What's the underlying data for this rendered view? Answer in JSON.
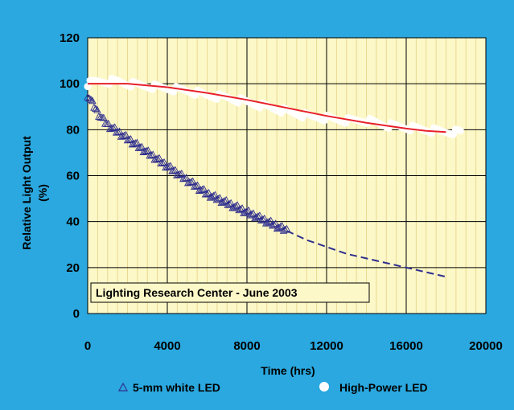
{
  "chart_data": {
    "type": "scatter",
    "title": "",
    "xlabel": "Time (hrs)",
    "ylabel_line1": "Relative Light Output",
    "ylabel_line2": "(%)",
    "xlim": [
      0,
      20000
    ],
    "ylim": [
      0,
      120
    ],
    "x_ticks": [
      0,
      4000,
      8000,
      12000,
      16000,
      20000
    ],
    "y_ticks": [
      0,
      20,
      40,
      60,
      80,
      100,
      120
    ],
    "x_tick_labels": [
      "0",
      "4000",
      "8000",
      "12000",
      "16000",
      "20000"
    ],
    "y_tick_labels": [
      "0",
      "20",
      "40",
      "60",
      "80",
      "100",
      "120"
    ],
    "grid": true,
    "legend_position": "bottom",
    "annotation": "Lighting Research Center - June 2003",
    "colors": {
      "background": "#2aa8df",
      "plot_area": "#fdf8c8",
      "grid": "#000000",
      "led_5mm": "#2e2e8e",
      "high_power_markers": "#ffffff",
      "high_power_fit": "#e8202a"
    },
    "series": [
      {
        "name": "5-mm white LED",
        "marker": "triangle",
        "points": [
          [
            0,
            95
          ],
          [
            200,
            92
          ],
          [
            400,
            89
          ],
          [
            600,
            86
          ],
          [
            800,
            84
          ],
          [
            1000,
            82
          ],
          [
            1500,
            79
          ],
          [
            2000,
            76
          ],
          [
            2500,
            73
          ],
          [
            3000,
            70
          ],
          [
            3500,
            67
          ],
          [
            4000,
            64
          ],
          [
            4500,
            61
          ],
          [
            5000,
            58
          ],
          [
            5500,
            55
          ],
          [
            6000,
            52
          ],
          [
            6500,
            50
          ],
          [
            7000,
            48
          ],
          [
            7500,
            46
          ],
          [
            8000,
            44
          ],
          [
            8500,
            42
          ],
          [
            9000,
            40
          ],
          [
            9500,
            38
          ],
          [
            10000,
            36
          ]
        ],
        "extrapolation": [
          [
            10000,
            36
          ],
          [
            11000,
            32
          ],
          [
            12000,
            29
          ],
          [
            13000,
            26
          ],
          [
            14000,
            24
          ],
          [
            15000,
            22
          ],
          [
            16000,
            20
          ],
          [
            17000,
            18
          ],
          [
            18000,
            16
          ]
        ]
      },
      {
        "name": "High-Power LED",
        "marker": "circle",
        "points": [
          [
            0,
            100
          ],
          [
            500,
            101
          ],
          [
            1000,
            101
          ],
          [
            1500,
            101
          ],
          [
            2000,
            100
          ],
          [
            3000,
            99
          ],
          [
            4000,
            98
          ],
          [
            5000,
            97
          ],
          [
            6000,
            95
          ],
          [
            7000,
            94
          ],
          [
            8000,
            92
          ],
          [
            9000,
            90
          ],
          [
            10000,
            88
          ],
          [
            11000,
            86
          ],
          [
            12000,
            85
          ],
          [
            13000,
            84
          ],
          [
            14000,
            84
          ],
          [
            15000,
            82
          ],
          [
            16000,
            81
          ],
          [
            17000,
            80
          ],
          [
            18000,
            79
          ],
          [
            18800,
            79
          ]
        ],
        "fit": [
          [
            0,
            100
          ],
          [
            2000,
            100
          ],
          [
            4000,
            98.5
          ],
          [
            6000,
            96
          ],
          [
            8000,
            93
          ],
          [
            10000,
            89.5
          ],
          [
            12000,
            86
          ],
          [
            14000,
            83
          ],
          [
            16000,
            80.5
          ],
          [
            17000,
            79.5
          ],
          [
            18000,
            79
          ]
        ]
      }
    ]
  }
}
